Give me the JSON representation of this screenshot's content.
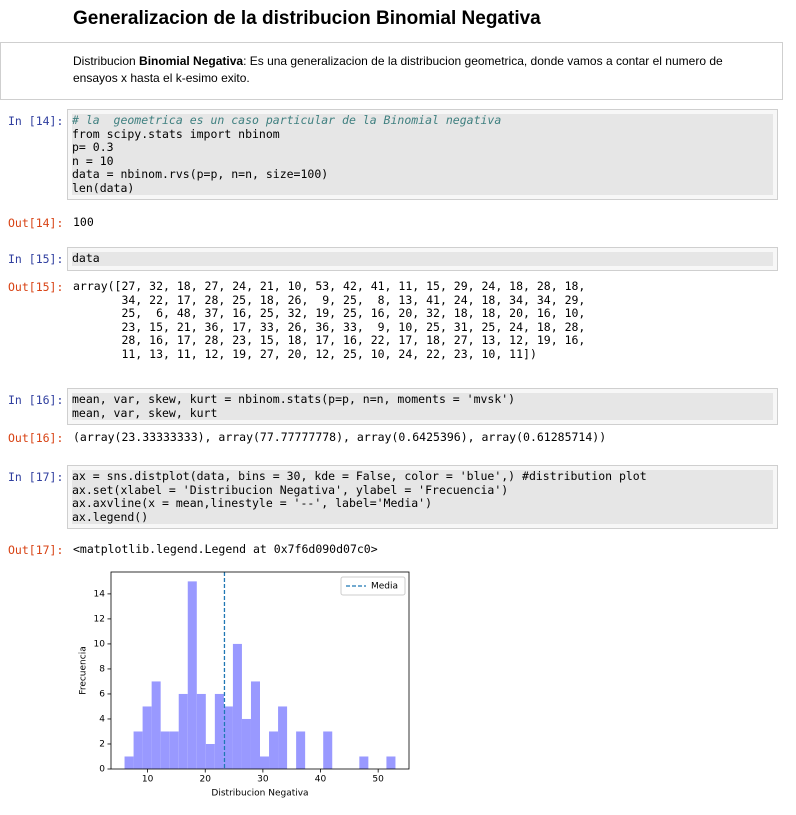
{
  "title": "Generalizacion de la distribucion Binomial Negativa",
  "markdown": {
    "before": "Distribucion ",
    "bold": "Binomial Negativa",
    "after": ": Es una generalizacion de la distribucion geometrica, donde vamos a contar el numero de ensayos x hasta el k-esimo exito."
  },
  "cells": [
    {
      "in_prompt": "In [14]:",
      "code": [
        "# la  geometrica es un caso particular de la Binomial negativa",
        "from scipy.stats import nbinom",
        "p= 0.3",
        "n = 10",
        "data = nbinom.rvs(p=p, n=n, size=100)",
        "len(data)"
      ],
      "out_prompt": "Out[14]:",
      "output": [
        "100"
      ]
    },
    {
      "in_prompt": "In [15]:",
      "code": [
        "data"
      ],
      "out_prompt": "Out[15]:",
      "output": [
        "array([27, 32, 18, 27, 24, 21, 10, 53, 42, 41, 11, 15, 29, 24, 18, 28, 18,",
        "       34, 22, 17, 28, 25, 18, 26,  9, 25,  8, 13, 41, 24, 18, 34, 34, 29,",
        "       25,  6, 48, 37, 16, 25, 32, 19, 25, 16, 20, 32, 18, 18, 20, 16, 10,",
        "       23, 15, 21, 36, 17, 33, 26, 36, 33,  9, 10, 25, 31, 25, 24, 18, 28,",
        "       28, 16, 17, 28, 23, 15, 18, 17, 16, 22, 17, 18, 27, 13, 12, 19, 16,",
        "       11, 13, 11, 12, 19, 27, 20, 12, 25, 10, 24, 22, 23, 10, 11])"
      ]
    },
    {
      "in_prompt": "In [16]:",
      "code": [
        "mean, var, skew, kurt = nbinom.stats(p=p, n=n, moments = 'mvsk')",
        "mean, var, skew, kurt"
      ],
      "out_prompt": "Out[16]:",
      "output": [
        "(array(23.33333333), array(77.77777778), array(0.6425396), array(0.61285714))"
      ]
    },
    {
      "in_prompt": "In [17]:",
      "code": [
        "ax = sns.distplot(data, bins = 30, kde = False, color = 'blue',) #distribution plot",
        "ax.set(xlabel = 'Distribucion Negativa', ylabel = 'Frecuencia')",
        "ax.axvline(x = mean,linestyle = '--', label='Media')",
        "ax.legend()"
      ],
      "out_prompt": "Out[17]:",
      "output": [
        "<matplotlib.legend.Legend at 0x7f6d090d07c0>"
      ]
    }
  ],
  "chart_data": {
    "type": "histogram",
    "xlabel": "Distribucion Negativa",
    "ylabel": "Frecuencia",
    "color": "#9999ff",
    "bins": [
      6,
      7.5667,
      9.1333,
      10.7,
      12.2667,
      13.8333,
      15.4,
      16.9667,
      18.5333,
      20.1,
      21.6667,
      23.2333,
      24.8,
      26.3667,
      27.9333,
      29.5,
      31.0667,
      32.6333,
      34.2,
      35.7667,
      37.3333,
      38.9,
      40.4667,
      42.0333,
      43.6,
      45.1667,
      46.7333,
      48.3,
      49.8667,
      51.4333,
      53
    ],
    "counts": [
      1,
      3,
      5,
      7,
      3,
      3,
      6,
      15,
      6,
      2,
      6,
      5,
      10,
      4,
      7,
      1,
      3,
      5,
      0,
      3,
      0,
      0,
      3,
      0,
      0,
      0,
      1,
      0,
      0,
      1
    ],
    "mean_line": {
      "x": 23.3333,
      "name": "Media",
      "color": "#1f77b4"
    },
    "xlim": [
      3.65,
      55.35
    ],
    "ylim": [
      0,
      15.75
    ],
    "xticks": [
      10,
      20,
      30,
      40,
      50
    ],
    "yticks": [
      0,
      2,
      4,
      6,
      8,
      10,
      12,
      14
    ],
    "legend": "upper right"
  }
}
